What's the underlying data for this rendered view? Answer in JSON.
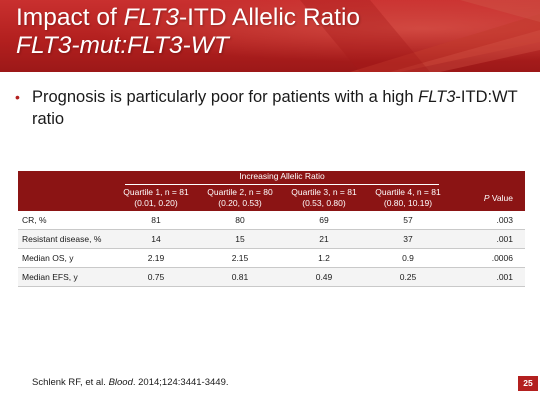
{
  "header": {
    "title_line1_pre": "Impact of ",
    "title_line1_em": "FLT3",
    "title_line1_post": "-ITD Allelic Ratio",
    "title_line2": "FLT3-mut:FLT3-WT",
    "background_color": "#b3201f"
  },
  "bullet": {
    "text_pre": "Prognosis is particularly poor for patients with a high ",
    "text_em": "FLT3",
    "text_post": "-ITD:WT ratio"
  },
  "table": {
    "group_header": "Increasing Allelic Ratio",
    "columns": [
      {
        "name": "Quartile 1, n = 81",
        "range": "(0.01, 0.20)"
      },
      {
        "name": "Quartile 2, n = 80",
        "range": "(0.20, 0.53)"
      },
      {
        "name": "Quartile 3, n = 81",
        "range": "(0.53, 0.80)"
      },
      {
        "name": "Quartile 4, n = 81",
        "range": "(0.80, 10.19)"
      }
    ],
    "p_header_italic": "P",
    "p_header_rest": " Value",
    "rows": [
      {
        "label": "CR, %",
        "values": [
          "81",
          "80",
          "69",
          "57"
        ],
        "p": ".003"
      },
      {
        "label": "Resistant disease, %",
        "values": [
          "14",
          "15",
          "21",
          "37"
        ],
        "p": ".001"
      },
      {
        "label": "Median OS, y",
        "values": [
          "2.19",
          "2.15",
          "1.2",
          "0.9"
        ],
        "p": ".0006"
      },
      {
        "label": "Median EFS, y",
        "values": [
          "0.75",
          "0.81",
          "0.49",
          "0.25"
        ],
        "p": ".001"
      }
    ],
    "header_color": "#8b1414"
  },
  "citation": {
    "pre": "Schlenk RF, et al. ",
    "journal": "Blood",
    "post": ". 2014;124:3441-3449."
  },
  "slide_number": "25"
}
